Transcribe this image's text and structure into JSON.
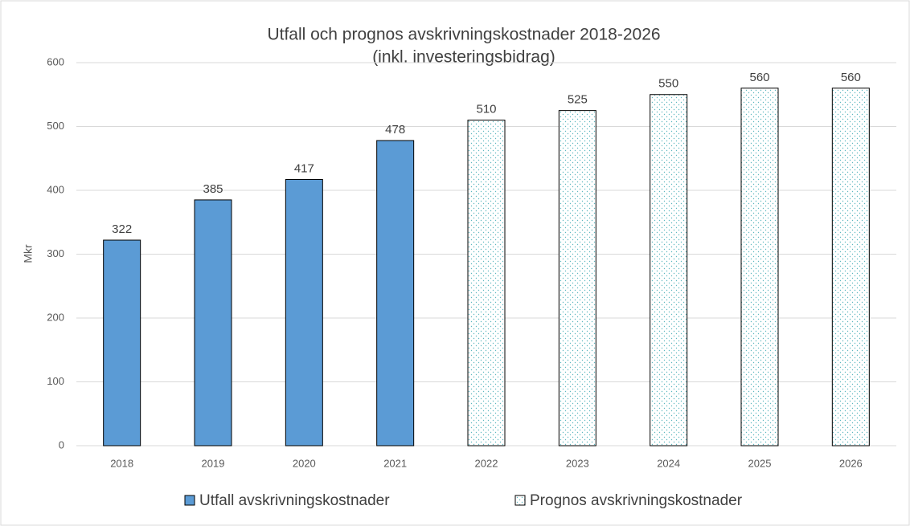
{
  "chart_data": {
    "type": "bar",
    "title": "Utfall och prognos avskrivningskostnader 2018-2026",
    "subtitle": "(inkl. investeringsbidrag)",
    "y_label": "Mkr",
    "categories": [
      "2018",
      "2019",
      "2020",
      "2021",
      "2022",
      "2023",
      "2024",
      "2025",
      "2026"
    ],
    "series": [
      {
        "name": "Utfall avskrivningskostnader",
        "color": "#5b9bd5",
        "values": [
          322,
          385,
          417,
          478,
          null,
          null,
          null,
          null,
          null
        ]
      },
      {
        "name": "Prognos avskrivningskostnader",
        "color": "#ffffff",
        "pattern": "dots",
        "values": [
          null,
          null,
          null,
          null,
          510,
          525,
          550,
          560,
          560
        ]
      }
    ],
    "ylim": [
      0,
      600
    ],
    "yticks": [
      0,
      100,
      200,
      300,
      400,
      500,
      600
    ],
    "grid": true,
    "legend": "bottom"
  }
}
